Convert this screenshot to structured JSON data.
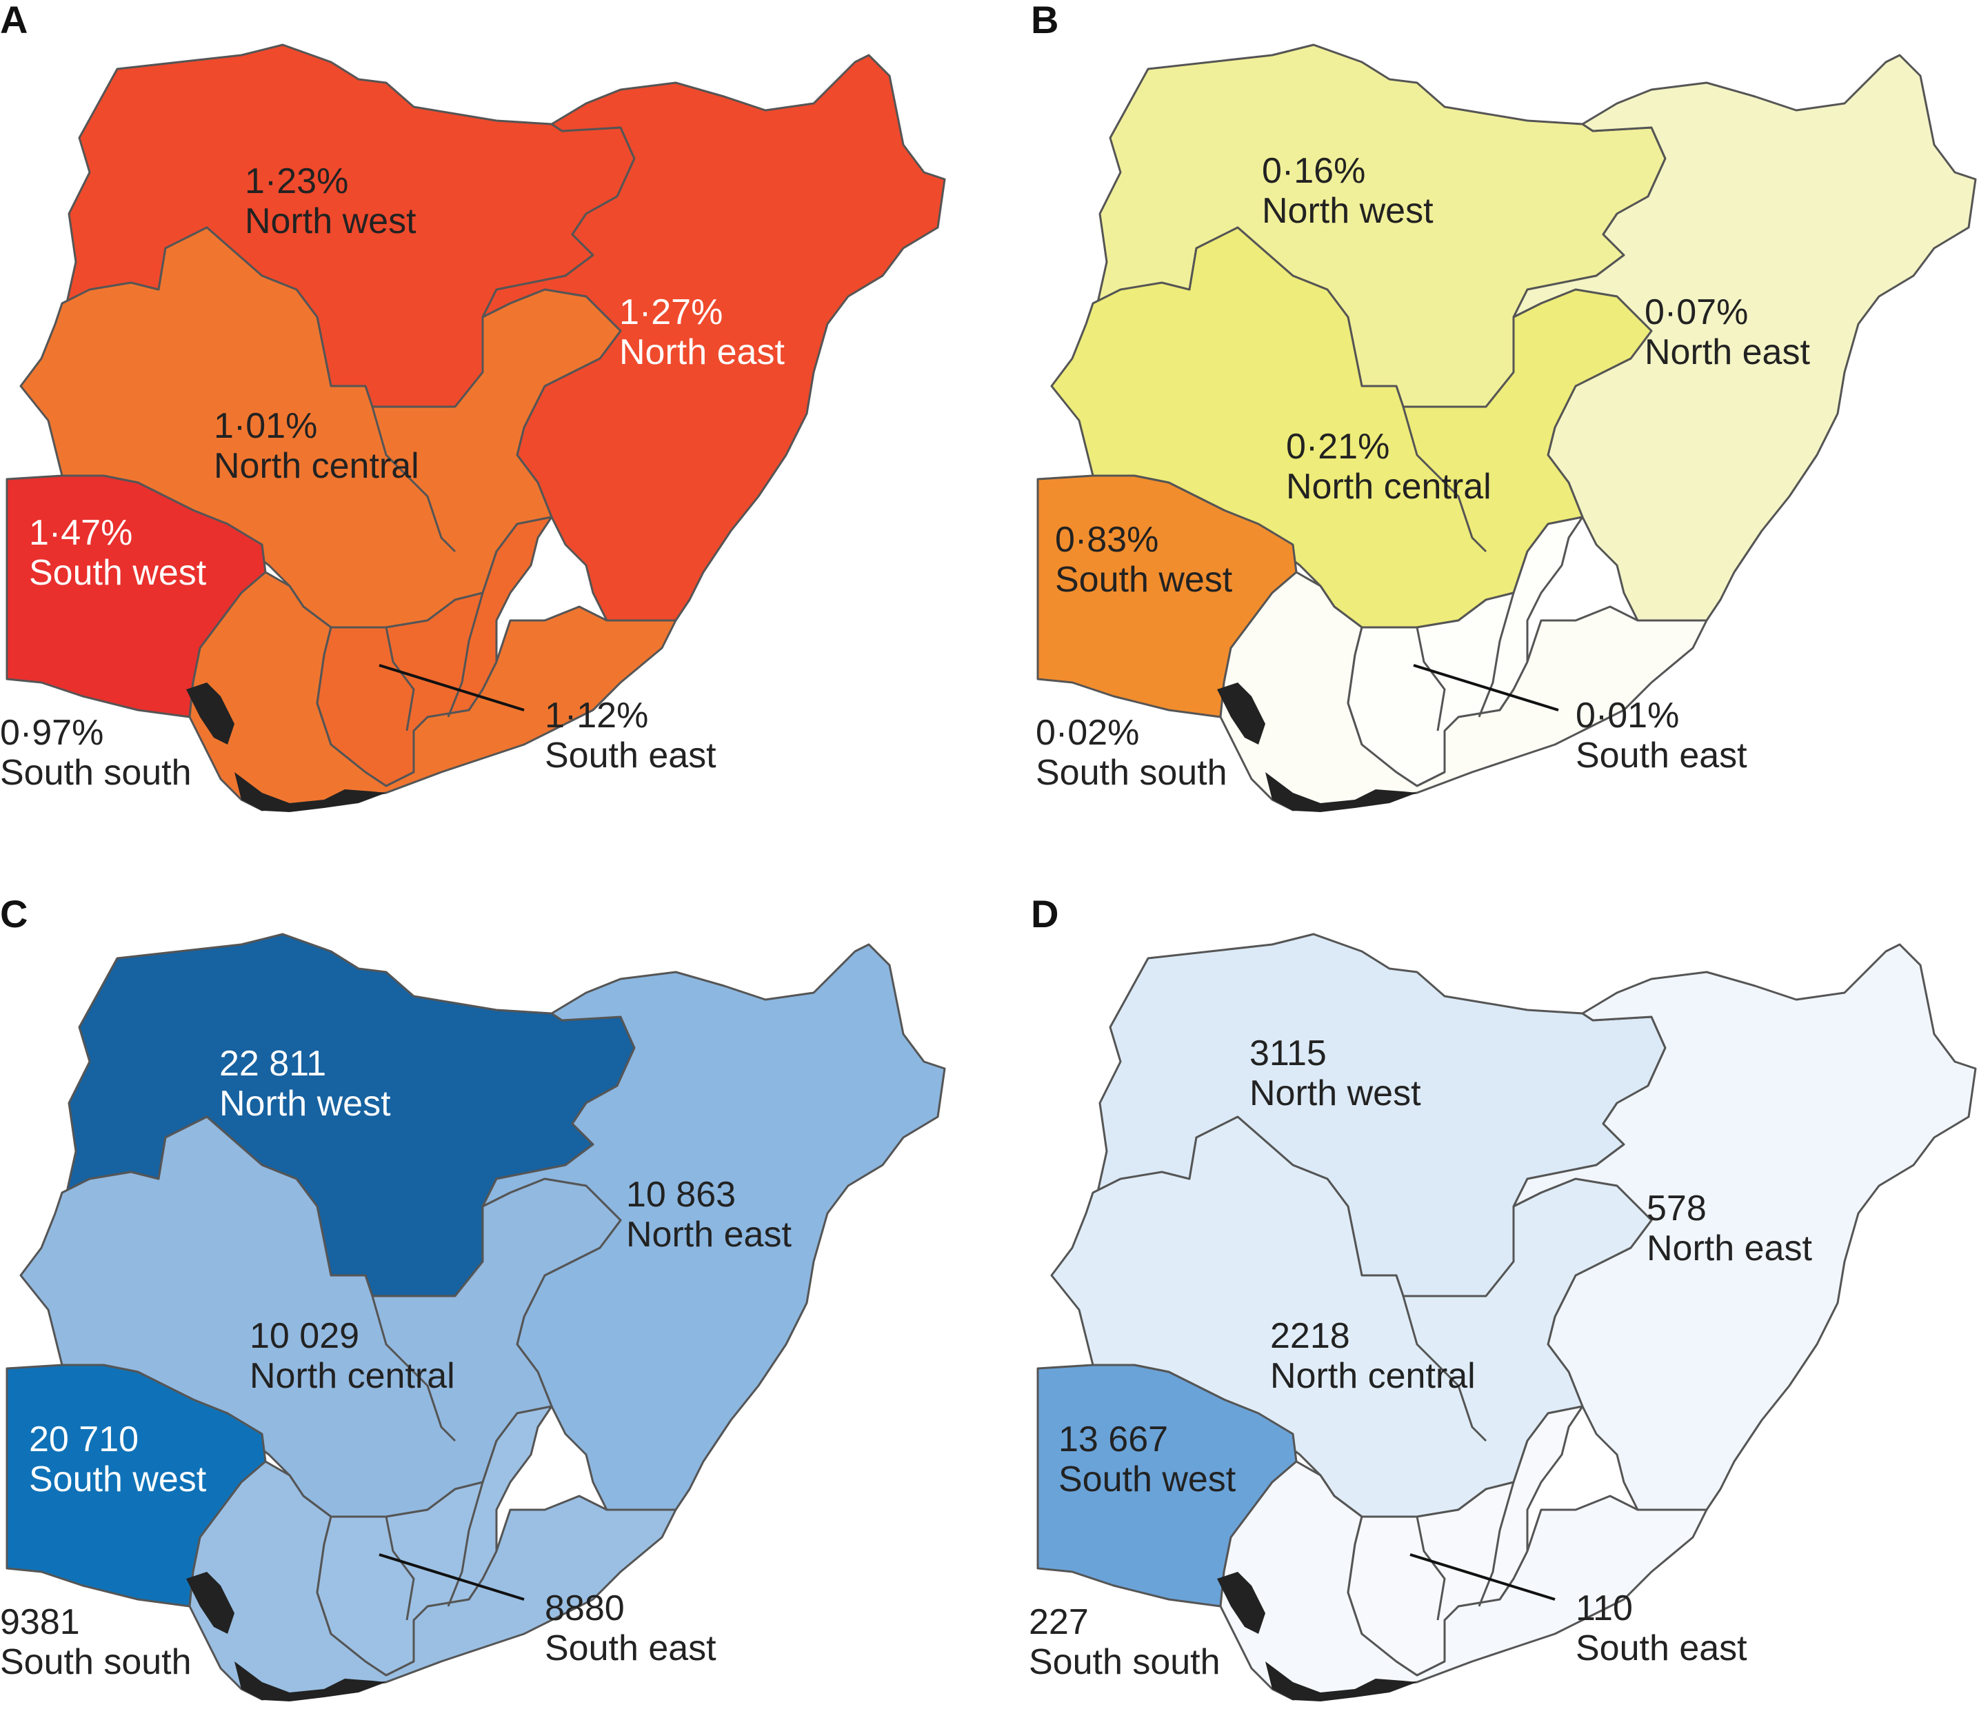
{
  "panels": [
    {
      "letter": "A",
      "regions": {
        "north_west": {
          "name": "North west",
          "value": "1·23%",
          "color": "#ef4a2c",
          "label_color": "#222222"
        },
        "north_east": {
          "name": "North east",
          "value": "1·27%",
          "color": "#ef4a2c",
          "label_color": "#ffffff"
        },
        "north_central": {
          "name": "North central",
          "value": "1·01%",
          "color": "#f07630",
          "label_color": "#222222"
        },
        "south_west": {
          "name": "South west",
          "value": "1·47%",
          "color": "#e9302d",
          "label_color": "#ffffff"
        },
        "south_south": {
          "name": "South south",
          "value": "0·97%",
          "color": "#f07630",
          "label_color": "#222222"
        },
        "south_east": {
          "name": "South east",
          "value": "1·12%",
          "color": "#f06a2d",
          "label_color": "#222222"
        }
      }
    },
    {
      "letter": "B",
      "regions": {
        "north_west": {
          "name": "North west",
          "value": "0·16%",
          "color": "#f1f09a",
          "label_color": "#222222"
        },
        "north_east": {
          "name": "North east",
          "value": "0·07%",
          "color": "#f4f4c5",
          "label_color": "#222222"
        },
        "north_central": {
          "name": "North central",
          "value": "0·21%",
          "color": "#eeec7a",
          "label_color": "#222222"
        },
        "south_west": {
          "name": "South west",
          "value": "0·83%",
          "color": "#f28d2d",
          "label_color": "#222222"
        },
        "south_south": {
          "name": "South south",
          "value": "0·02%",
          "color": "#fdfdf6",
          "label_color": "#222222"
        },
        "south_east": {
          "name": "South east",
          "value": "0·01%",
          "color": "#fefefb",
          "label_color": "#222222"
        }
      }
    },
    {
      "letter": "C",
      "regions": {
        "north_west": {
          "name": "North west",
          "value": "22 811",
          "color": "#1762a0",
          "label_color": "#ffffff"
        },
        "north_east": {
          "name": "North east",
          "value": "10 863",
          "color": "#8cb7e0",
          "label_color": "#222222"
        },
        "north_central": {
          "name": "North central",
          "value": "10 029",
          "color": "#92b9e0",
          "label_color": "#222222"
        },
        "south_west": {
          "name": "South west",
          "value": "20 710",
          "color": "#0f72b8",
          "label_color": "#ffffff"
        },
        "south_south": {
          "name": "South south",
          "value": "9381",
          "color": "#9abfe3",
          "label_color": "#222222"
        },
        "south_east": {
          "name": "South east",
          "value": "8880",
          "color": "#9dc1e4",
          "label_color": "#222222"
        }
      }
    },
    {
      "letter": "D",
      "regions": {
        "north_west": {
          "name": "North west",
          "value": "3115",
          "color": "#dceaf7",
          "label_color": "#222222"
        },
        "north_east": {
          "name": "North east",
          "value": "578",
          "color": "#f1f6fc",
          "label_color": "#222222"
        },
        "north_central": {
          "name": "North central",
          "value": "2218",
          "color": "#e0edf8",
          "label_color": "#222222"
        },
        "south_west": {
          "name": "South west",
          "value": "13 667",
          "color": "#6aa3d8",
          "label_color": "#222222"
        },
        "south_south": {
          "name": "South south",
          "value": "227",
          "color": "#f5f8fc",
          "label_color": "#222222"
        },
        "south_east": {
          "name": "South east",
          "value": "110",
          "color": "#f7f9fc",
          "label_color": "#222222"
        }
      }
    }
  ]
}
